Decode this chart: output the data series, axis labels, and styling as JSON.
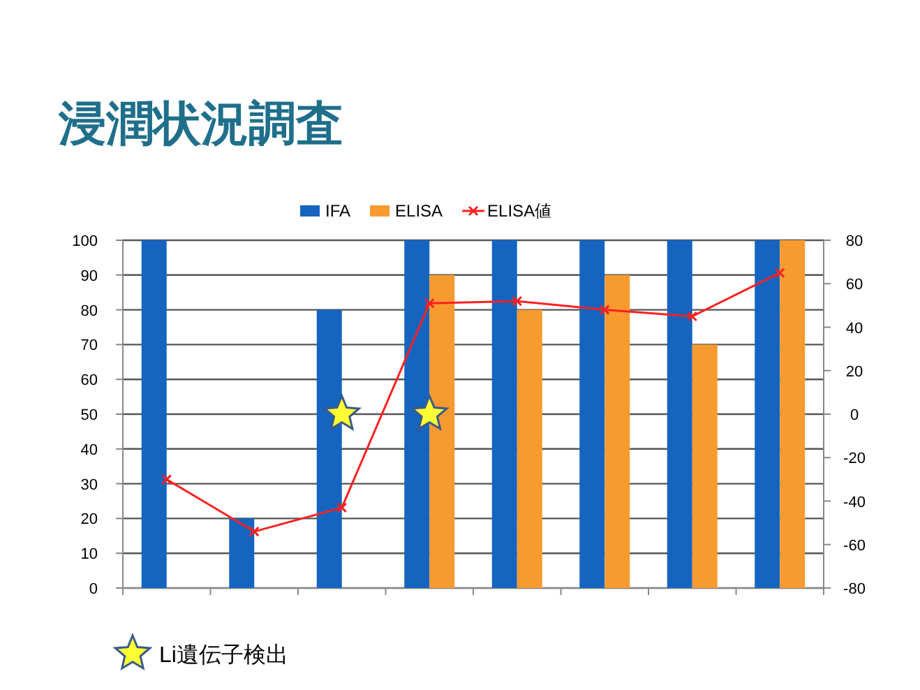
{
  "chart_data": {
    "type": "bar",
    "title": "浸潤状況調査",
    "categories": [
      null,
      null,
      null,
      null,
      null,
      null,
      null,
      null
    ],
    "series": [
      {
        "name": "IFA",
        "color": "#1565c0",
        "values": [
          100,
          20,
          80,
          100,
          100,
          100,
          100,
          100
        ]
      },
      {
        "name": "ELISA",
        "color": "#f79a30",
        "values": [
          null,
          null,
          null,
          90,
          80,
          90,
          70,
          100
        ]
      },
      {
        "name": "ELISA値",
        "type": "line",
        "axis": "y2",
        "color": "#ff2020",
        "marker": "cross",
        "values": [
          -30,
          -54,
          -43,
          51,
          52,
          48,
          45,
          65
        ]
      },
      {
        "type": "scatter",
        "color": "#ffff33",
        "marker": "star",
        "values": [
          null,
          null,
          50,
          50,
          null,
          null,
          null,
          null
        ]
      }
    ],
    "ylim": [
      0,
      100
    ],
    "yticks": [
      0,
      10,
      20,
      30,
      40,
      50,
      60,
      70,
      80,
      90,
      100
    ],
    "y2lim": [
      -80,
      80
    ],
    "y2ticks": [
      -80,
      -60,
      -40,
      -20,
      0,
      20,
      40,
      60,
      80
    ],
    "annotations": [
      "Li遺伝子検出"
    ],
    "grid": "y",
    "legend": "top",
    "tick_labels": "y"
  }
}
